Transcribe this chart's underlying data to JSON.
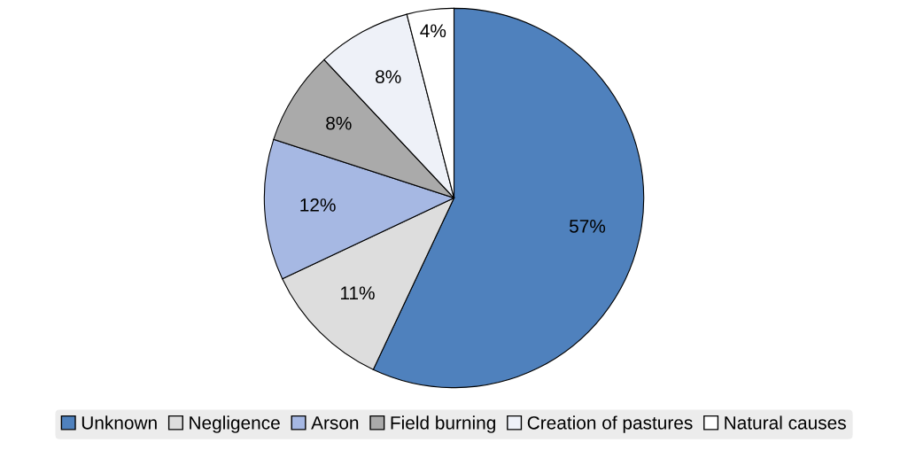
{
  "chart_data": {
    "type": "pie",
    "categories": [
      "Unknown",
      "Negligence",
      "Arson",
      "Field burning",
      "Creation of pastures",
      "Natural causes"
    ],
    "values": [
      57,
      11,
      12,
      8,
      8,
      4
    ],
    "colors": [
      "#4f81bd",
      "#dddddd",
      "#a6b8e3",
      "#aaaaaa",
      "#eef1f8",
      "#ffffff"
    ],
    "value_labels": [
      "57%",
      "11%",
      "12%",
      "8%",
      "8%",
      "4%"
    ],
    "legend": "bottom"
  }
}
